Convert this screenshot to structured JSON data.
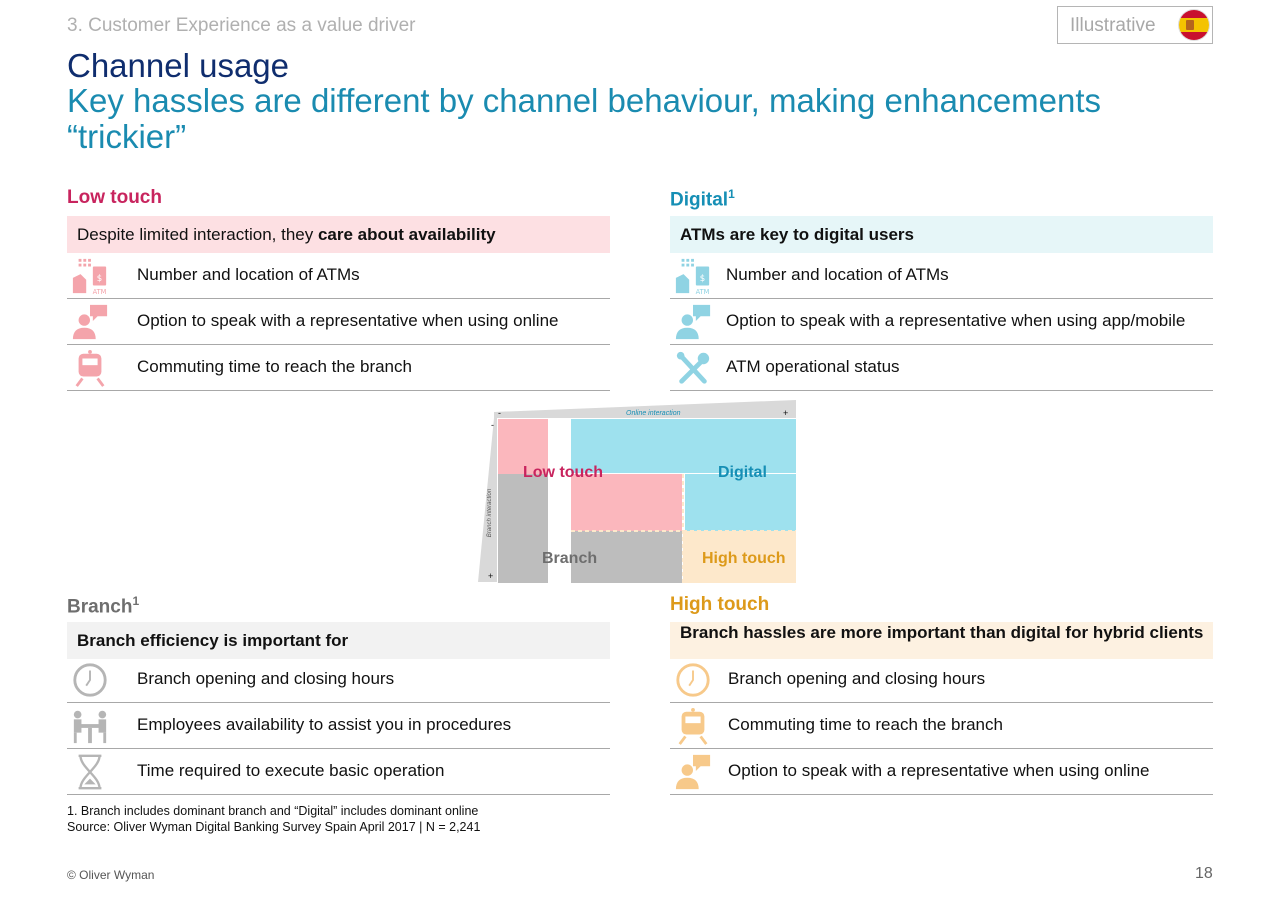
{
  "header": {
    "section": "3. Customer Experience as a value driver",
    "badge": "Illustrative",
    "title": "Channel usage",
    "subtitle": "Key hassles are different by channel behaviour, making enhancements “trickier”"
  },
  "low_touch": {
    "heading": "Low touch",
    "banner_pre": "Despite limited interaction, they ",
    "banner_bold": "care about availability",
    "items": [
      {
        "icon": "atm-icon",
        "text": "Number and location of ATMs"
      },
      {
        "icon": "representative-chat-icon",
        "text": "Option to speak with a representative when using online"
      },
      {
        "icon": "train-icon",
        "text": "Commuting time to reach the branch"
      }
    ]
  },
  "digital": {
    "heading": "Digital",
    "sup": "1",
    "banner": "ATMs are key to digital users",
    "items": [
      {
        "icon": "atm-icon",
        "text": "Number and location of ATMs"
      },
      {
        "icon": "representative-chat-icon",
        "text": "Option to speak with a representative when using app/mobile"
      },
      {
        "icon": "tools-icon",
        "text": "ATM operational status"
      }
    ]
  },
  "branch": {
    "heading": "Branch",
    "sup": "1",
    "banner": "Branch efficiency is important for",
    "items": [
      {
        "icon": "clock-icon",
        "text": "Branch opening and closing hours"
      },
      {
        "icon": "employee-desk-icon",
        "text": "Employees availability to assist you in procedures"
      },
      {
        "icon": "hourglass-icon",
        "text": "Time required to execute basic operation"
      }
    ]
  },
  "high_touch": {
    "heading": "High touch",
    "banner": "Branch hassles are more important than digital for hybrid clients",
    "items": [
      {
        "icon": "clock-icon",
        "text": "Branch opening and closing hours"
      },
      {
        "icon": "train-icon",
        "text": "Commuting time to reach the branch"
      },
      {
        "icon": "representative-chat-icon",
        "text": "Option to speak with a representative when using online"
      }
    ]
  },
  "matrix": {
    "x_axis": "Online interaction",
    "y_axis": "Branch interaction",
    "minus": "-",
    "plus": "+",
    "labels": {
      "low_touch": "Low touch",
      "digital": "Digital",
      "branch": "Branch",
      "high_touch": "High touch"
    }
  },
  "colors": {
    "low_touch": "#c8245e",
    "digital": "#168fb5",
    "branch": "#6e6e6e",
    "high_touch": "#dd9a1a",
    "pink_fill": "#fbb7bd",
    "cyan_fill": "#9ee1ee",
    "grey_fill": "#bdbdbd",
    "peach_fill": "#fde8cb"
  },
  "footnotes": {
    "line1": "1. Branch includes dominant branch and “Digital” includes dominant online",
    "line2": "Source: Oliver Wyman Digital Banking Survey Spain April 2017 |  N = 2,241"
  },
  "footer": {
    "copyright": "© Oliver Wyman",
    "page": "18"
  }
}
